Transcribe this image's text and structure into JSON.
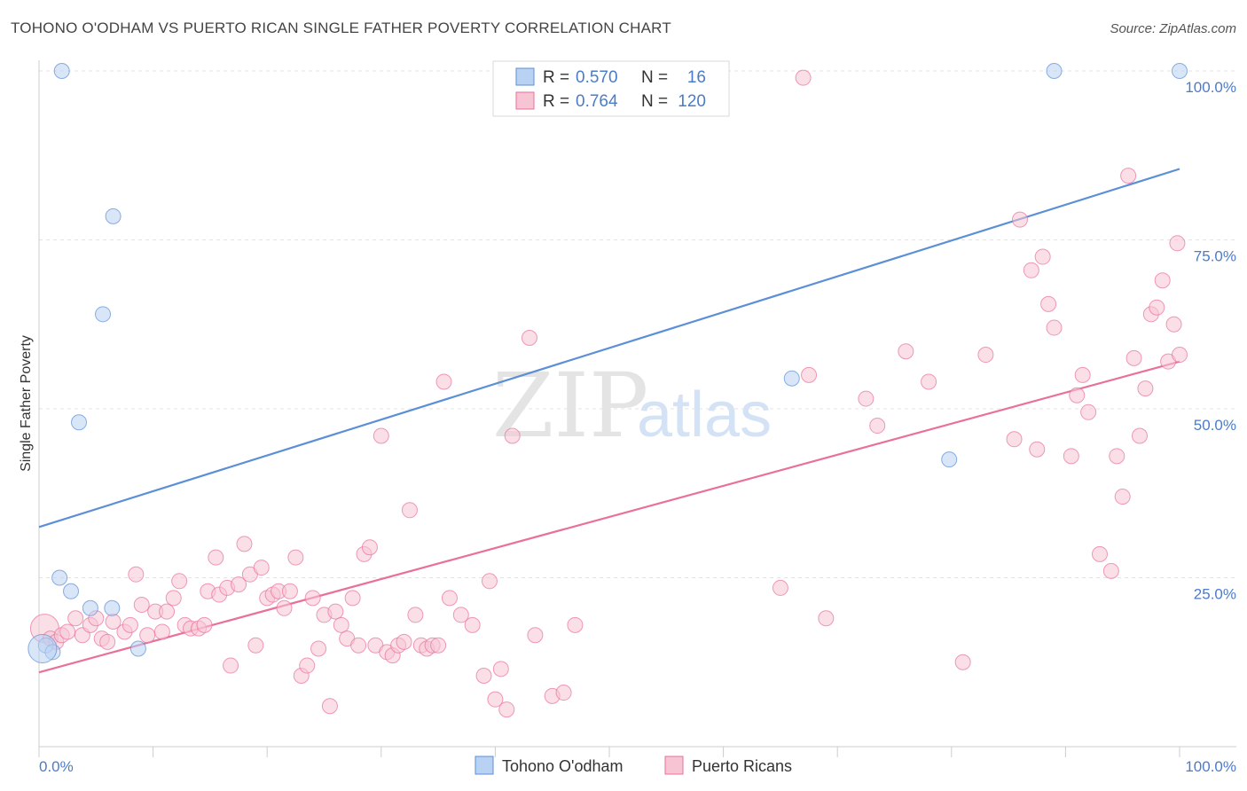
{
  "header": {
    "title": "TOHONO O'ODHAM VS PUERTO RICAN SINGLE FATHER POVERTY CORRELATION CHART",
    "source": "Source: ZipAtlas.com"
  },
  "watermark": {
    "zip": "ZIP",
    "atlas": "atlas"
  },
  "chart_data": {
    "type": "scatter",
    "title": "TOHONO O'ODHAM VS PUERTO RICAN SINGLE FATHER POVERTY CORRELATION CHART",
    "xlabel": "",
    "ylabel": "Single Father Poverty",
    "xlim": [
      0,
      100
    ],
    "ylim": [
      0,
      100
    ],
    "x_tick_labels": [
      "0.0%",
      "100.0%"
    ],
    "y_ticks": [
      25,
      50,
      75,
      100
    ],
    "y_tick_labels": [
      "25.0%",
      "50.0%",
      "75.0%",
      "100.0%"
    ],
    "legend_labels": {
      "r": "R =",
      "n": "N ="
    },
    "series": [
      {
        "name": "Tohono O'odham",
        "color": "#5b8fd6",
        "fill": "#b9d1f2",
        "r_value": "0.570",
        "n_value": "16",
        "trend": {
          "x": [
            0,
            100
          ],
          "y": [
            32.5,
            85.5
          ]
        },
        "points": [
          [
            2,
            100
          ],
          [
            6.5,
            78.5
          ],
          [
            5.6,
            64
          ],
          [
            3.5,
            48
          ],
          [
            1.8,
            25
          ],
          [
            2.8,
            23
          ],
          [
            4.5,
            20.5
          ],
          [
            6.4,
            20.5
          ],
          [
            0.6,
            15
          ],
          [
            1.2,
            14
          ],
          [
            8.7,
            14.5
          ],
          [
            66,
            54.5
          ],
          [
            79.8,
            42.5
          ],
          [
            89,
            100
          ],
          [
            100,
            100
          ],
          [
            0.3,
            14.5
          ]
        ]
      },
      {
        "name": "Puerto Ricans",
        "color": "#e8719c",
        "fill": "#f7c4d4",
        "r_value": "0.764",
        "n_value": "120",
        "trend": {
          "x": [
            0,
            100
          ],
          "y": [
            11,
            57
          ]
        },
        "points": [
          [
            0.5,
            17.5
          ],
          [
            1,
            16
          ],
          [
            1.5,
            15.5
          ],
          [
            2,
            16.5
          ],
          [
            2.5,
            17
          ],
          [
            3.2,
            19
          ],
          [
            3.8,
            16.5
          ],
          [
            4.5,
            18
          ],
          [
            5,
            19
          ],
          [
            5.5,
            16
          ],
          [
            6,
            15.5
          ],
          [
            6.5,
            18.5
          ],
          [
            7.5,
            17
          ],
          [
            8,
            18
          ],
          [
            8.5,
            25.5
          ],
          [
            9,
            21
          ],
          [
            9.5,
            16.5
          ],
          [
            10.2,
            20
          ],
          [
            10.8,
            17
          ],
          [
            11.2,
            20
          ],
          [
            11.8,
            22
          ],
          [
            12.3,
            24.5
          ],
          [
            12.8,
            18
          ],
          [
            13.3,
            17.5
          ],
          [
            14,
            17.5
          ],
          [
            14.5,
            18
          ],
          [
            14.8,
            23
          ],
          [
            15.5,
            28
          ],
          [
            15.8,
            22.5
          ],
          [
            16.5,
            23.5
          ],
          [
            16.8,
            12
          ],
          [
            17.5,
            24
          ],
          [
            18,
            30
          ],
          [
            18.5,
            25.5
          ],
          [
            19,
            15
          ],
          [
            19.5,
            26.5
          ],
          [
            20,
            22
          ],
          [
            20.5,
            22.5
          ],
          [
            21,
            23
          ],
          [
            21.5,
            20.5
          ],
          [
            22,
            23
          ],
          [
            22.5,
            28
          ],
          [
            23,
            10.5
          ],
          [
            23.5,
            12
          ],
          [
            24,
            22
          ],
          [
            24.5,
            14.5
          ],
          [
            25,
            19.5
          ],
          [
            25.5,
            6
          ],
          [
            26,
            20
          ],
          [
            26.5,
            18
          ],
          [
            27,
            16
          ],
          [
            27.5,
            22
          ],
          [
            28,
            15
          ],
          [
            28.5,
            28.5
          ],
          [
            29,
            29.5
          ],
          [
            29.5,
            15
          ],
          [
            30,
            46
          ],
          [
            30.5,
            14
          ],
          [
            31,
            13.5
          ],
          [
            31.5,
            15
          ],
          [
            32,
            15.5
          ],
          [
            32.5,
            35
          ],
          [
            33,
            19.5
          ],
          [
            33.5,
            15
          ],
          [
            34,
            14.5
          ],
          [
            34.5,
            15
          ],
          [
            35,
            15
          ],
          [
            35.5,
            54
          ],
          [
            36,
            22
          ],
          [
            37,
            19.5
          ],
          [
            38,
            18
          ],
          [
            39,
            10.5
          ],
          [
            39.5,
            24.5
          ],
          [
            40,
            7
          ],
          [
            40.5,
            11.5
          ],
          [
            41,
            5.5
          ],
          [
            41.5,
            46
          ],
          [
            43,
            60.5
          ],
          [
            43.5,
            16.5
          ],
          [
            45,
            7.5
          ],
          [
            46,
            8
          ],
          [
            47,
            18
          ],
          [
            65,
            23.5
          ],
          [
            67,
            99
          ],
          [
            67.5,
            55
          ],
          [
            69,
            19
          ],
          [
            72.5,
            51.5
          ],
          [
            73.5,
            47.5
          ],
          [
            76,
            58.5
          ],
          [
            78,
            54
          ],
          [
            81,
            12.5
          ],
          [
            83,
            58
          ],
          [
            85.5,
            45.5
          ],
          [
            86,
            78
          ],
          [
            87,
            70.5
          ],
          [
            87.5,
            44
          ],
          [
            88,
            72.5
          ],
          [
            88.5,
            65.5
          ],
          [
            89,
            62
          ],
          [
            90.5,
            43
          ],
          [
            91,
            52
          ],
          [
            91.5,
            55
          ],
          [
            92,
            49.5
          ],
          [
            93,
            28.5
          ],
          [
            94,
            26
          ],
          [
            94.5,
            43
          ],
          [
            95,
            37
          ],
          [
            95.5,
            84.5
          ],
          [
            96,
            57.5
          ],
          [
            96.5,
            46
          ],
          [
            97,
            53
          ],
          [
            97.5,
            64
          ],
          [
            98,
            65
          ],
          [
            98.5,
            69
          ],
          [
            99,
            57
          ],
          [
            99.5,
            62.5
          ],
          [
            99.8,
            74.5
          ],
          [
            100,
            58
          ]
        ]
      }
    ]
  }
}
